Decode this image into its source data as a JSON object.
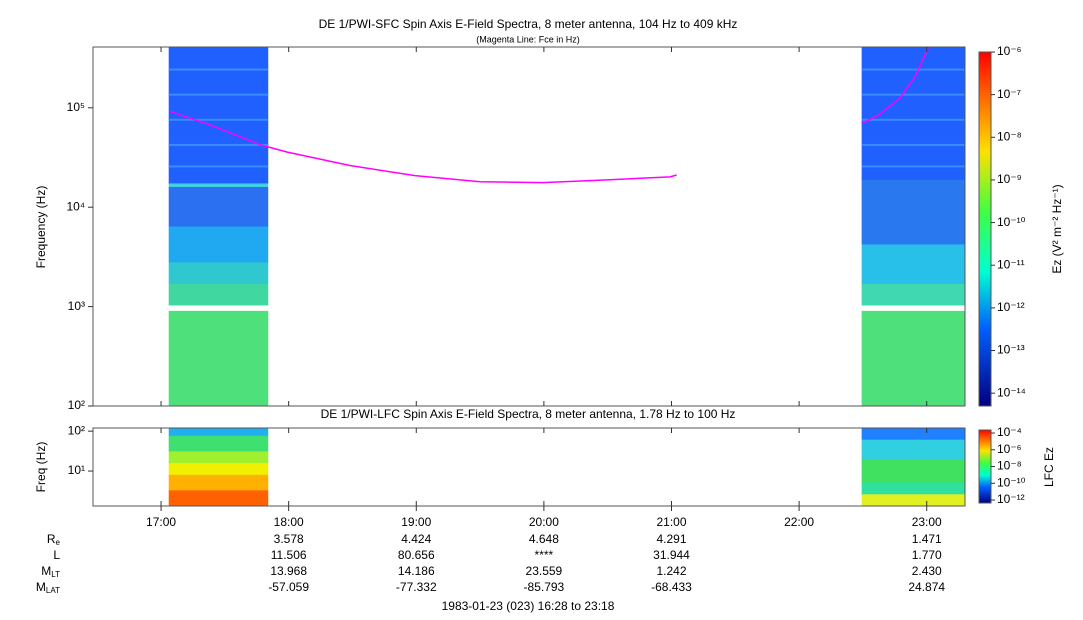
{
  "chart_data": [
    {
      "type": "spectrogram",
      "title": "DE 1/PWI-SFC  Spin Axis E-Field Spectra, 8 meter antenna, 104 Hz to 409 kHz",
      "subtitle": "(Magenta Line: Fce in Hz)",
      "y_label": "Frequency (Hz)",
      "xlim": [
        16.4667,
        23.3
      ],
      "ylim": [
        100,
        409000
      ],
      "log_y": true,
      "yticks": [
        {
          "value": 100,
          "label": "10²"
        },
        {
          "value": 1000,
          "label": "10³"
        },
        {
          "value": 10000,
          "label": "10⁴"
        },
        {
          "value": 100000,
          "label": "10⁵"
        }
      ],
      "coverage": [
        [
          17.06,
          17.84
        ],
        [
          22.49,
          23.3
        ]
      ],
      "series": [
        {
          "color": "#ff00ff",
          "x": [
            17.07,
            17.38,
            17.78,
            17.99,
            18.48,
            18.99,
            19.5,
            19.99,
            20.52,
            20.99,
            21.04,
            null,
            22.49,
            22.63,
            22.79,
            22.91,
            23.01
          ],
          "values": [
            92000,
            67600,
            42300,
            35800,
            26300,
            20800,
            18000,
            17700,
            18900,
            20200,
            21100,
            null,
            69400,
            85700,
            125000,
            206000,
            400000
          ]
        }
      ],
      "colorbar": {
        "label": "Ez (V² m⁻² Hz⁻¹)",
        "lim": [
          1e-06,
          5e-15
        ],
        "ticks": [
          {
            "value": 1e-06,
            "label": "10⁻⁶"
          },
          {
            "value": 1e-07,
            "label": "10⁻⁷"
          },
          {
            "value": 1e-08,
            "label": "10⁻⁸"
          },
          {
            "value": 1e-09,
            "label": "10⁻⁹"
          },
          {
            "value": 1e-10,
            "label": "10⁻¹⁰"
          },
          {
            "value": 1e-11,
            "label": "10⁻¹¹"
          },
          {
            "value": 1e-12,
            "label": "10⁻¹²"
          },
          {
            "value": 1e-13,
            "label": "10⁻¹³"
          },
          {
            "value": 1e-14,
            "label": "10⁻¹⁴"
          }
        ]
      }
    },
    {
      "type": "spectrogram",
      "title": "DE 1/PWI-LFC  Spin Axis E-Field Spectra, 8 meter antenna, 1.78 Hz to 100 Hz",
      "y_label": "Freq (Hz)",
      "xlim": [
        16.4667,
        23.3
      ],
      "ylim": [
        1.33,
        120
      ],
      "log_y": true,
      "xticks": [
        {
          "value": 17,
          "label": "17:00"
        },
        {
          "value": 18,
          "label": "18:00"
        },
        {
          "value": 19,
          "label": "19:00"
        },
        {
          "value": 20,
          "label": "20:00"
        },
        {
          "value": 21,
          "label": "21:00"
        },
        {
          "value": 22,
          "label": "22:00"
        },
        {
          "value": 23,
          "label": "23:00"
        }
      ],
      "yticks": [
        {
          "value": 10,
          "label": "10¹"
        },
        {
          "value": 100,
          "label": "10²"
        }
      ],
      "coverage": [
        [
          17.06,
          17.84
        ],
        [
          22.49,
          23.3
        ]
      ],
      "colorbar": {
        "label": "LFC Ez",
        "lim": [
          0.00023,
          4.4e-13
        ],
        "ticks": [
          {
            "value": 0.0001,
            "label": "10⁻⁴"
          },
          {
            "value": 1e-06,
            "label": "10⁻⁶"
          },
          {
            "value": 1e-08,
            "label": "10⁻⁸"
          },
          {
            "value": 1e-10,
            "label": "10⁻¹⁰"
          },
          {
            "value": 1e-12,
            "label": "10⁻¹²"
          }
        ]
      }
    }
  ],
  "ephemeris": {
    "rows": [
      {
        "label": "R",
        "sub": "e",
        "values": [
          "3.578",
          "4.424",
          "4.648",
          "4.291",
          "1.471"
        ]
      },
      {
        "label": "L",
        "values": [
          "11.506",
          "80.656",
          "****",
          "31.944",
          "1.770"
        ]
      },
      {
        "label": "M",
        "sub": "LT",
        "values": [
          "13.968",
          "14.186",
          "23.559",
          "1.242",
          "2.430"
        ]
      },
      {
        "label": "M",
        "sub": "LAT",
        "values": [
          "-57.059",
          "-77.332",
          "-85.793",
          "-68.433",
          "24.874"
        ]
      }
    ]
  },
  "footer": "1983-01-23 (023) 16:28 to 23:18"
}
